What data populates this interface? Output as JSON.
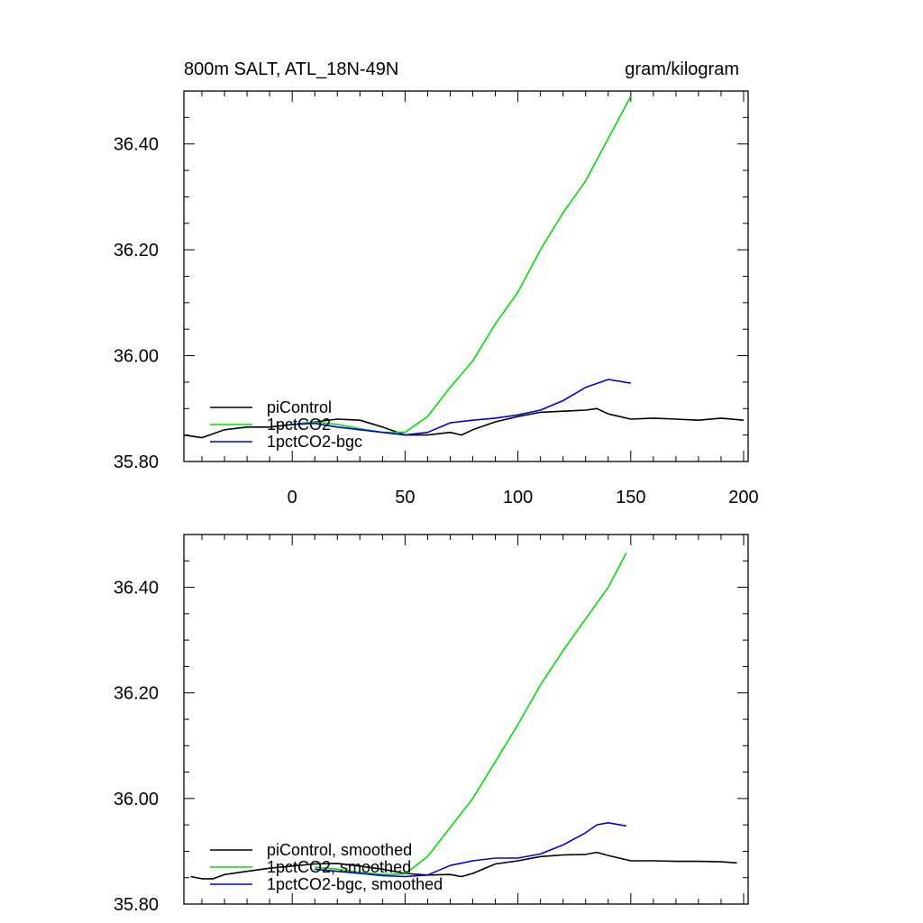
{
  "chart_data": [
    {
      "type": "line",
      "title_left": "800m SALT, ATL_18N-49N",
      "title_right": "gram/kilogram",
      "xlim": [
        -48,
        202
      ],
      "ylim": [
        35.8,
        36.5
      ],
      "xticks": [
        0,
        50,
        100,
        150,
        200
      ],
      "xtick_labels": [
        "0",
        "50",
        "100",
        "150",
        "200"
      ],
      "yticks": [
        35.8,
        36.0,
        36.2,
        36.4
      ],
      "ytick_labels": [
        "35.80",
        "36.00",
        "36.20",
        "36.40"
      ],
      "legend_position": "bottom-left",
      "series": [
        {
          "name": "piControl",
          "color": "#000000",
          "x": [
            -48,
            -40,
            -30,
            -20,
            -10,
            0,
            10,
            20,
            30,
            40,
            50,
            60,
            70,
            75,
            80,
            90,
            100,
            110,
            120,
            130,
            135,
            140,
            150,
            160,
            170,
            180,
            190,
            200
          ],
          "y": [
            35.85,
            35.845,
            35.86,
            35.865,
            35.865,
            35.87,
            35.875,
            35.88,
            35.878,
            35.865,
            35.85,
            35.85,
            35.855,
            35.85,
            35.86,
            35.875,
            35.885,
            35.893,
            35.895,
            35.897,
            35.9,
            35.89,
            35.88,
            35.882,
            35.88,
            35.878,
            35.882,
            35.878
          ]
        },
        {
          "name": "1pctCO2",
          "color": "#00dd00",
          "x": [
            0,
            10,
            20,
            30,
            40,
            50,
            60,
            70,
            80,
            90,
            100,
            110,
            120,
            130,
            140,
            150
          ],
          "y": [
            35.87,
            35.875,
            35.87,
            35.862,
            35.855,
            35.855,
            35.885,
            35.94,
            35.99,
            36.06,
            36.12,
            36.2,
            36.27,
            36.33,
            36.41,
            36.49
          ]
        },
        {
          "name": "1pctCO2-bgc",
          "color": "#0000dd",
          "x": [
            0,
            10,
            20,
            30,
            40,
            50,
            60,
            70,
            80,
            90,
            100,
            110,
            120,
            130,
            140,
            150
          ],
          "y": [
            35.87,
            35.872,
            35.865,
            35.86,
            35.855,
            35.85,
            35.855,
            35.873,
            35.878,
            35.882,
            35.888,
            35.897,
            35.915,
            35.94,
            35.955,
            35.948
          ]
        }
      ]
    },
    {
      "type": "line",
      "xlim": [
        -48,
        202
      ],
      "ylim": [
        35.8,
        36.5
      ],
      "yticks": [
        35.8,
        36.0,
        36.2,
        36.4
      ],
      "ytick_labels": [
        "35.80",
        "36.00",
        "36.20",
        "36.40"
      ],
      "legend_position": "bottom-left",
      "series": [
        {
          "name": "piControl, smoothed",
          "color": "#000000",
          "x": [
            -45,
            -40,
            -35,
            -30,
            -20,
            -10,
            0,
            10,
            20,
            30,
            40,
            50,
            60,
            70,
            75,
            80,
            90,
            100,
            110,
            120,
            130,
            135,
            140,
            150,
            160,
            170,
            180,
            190,
            197
          ],
          "y": [
            35.852,
            35.848,
            35.848,
            35.856,
            35.862,
            35.868,
            35.872,
            35.876,
            35.877,
            35.872,
            35.866,
            35.858,
            35.855,
            35.856,
            35.852,
            35.858,
            35.876,
            35.882,
            35.89,
            35.893,
            35.894,
            35.898,
            35.892,
            35.882,
            35.882,
            35.881,
            35.881,
            35.88,
            35.878
          ]
        },
        {
          "name": "1pctCO2, smoothed",
          "color": "#00dd00",
          "x": [
            10,
            20,
            30,
            40,
            50,
            60,
            70,
            80,
            90,
            100,
            110,
            120,
            130,
            140,
            148
          ],
          "y": [
            35.87,
            35.866,
            35.86,
            35.856,
            35.857,
            35.89,
            35.945,
            36.0,
            36.07,
            36.14,
            36.215,
            36.28,
            36.34,
            36.4,
            36.465
          ]
        },
        {
          "name": "1pctCO2-bgc, smoothed",
          "color": "#0000dd",
          "x": [
            10,
            20,
            30,
            40,
            50,
            60,
            70,
            80,
            90,
            100,
            110,
            120,
            130,
            135,
            140,
            148
          ],
          "y": [
            35.866,
            35.862,
            35.858,
            35.854,
            35.852,
            35.855,
            35.873,
            35.882,
            35.887,
            35.887,
            35.895,
            35.912,
            35.935,
            35.95,
            35.954,
            35.948
          ]
        }
      ]
    }
  ]
}
